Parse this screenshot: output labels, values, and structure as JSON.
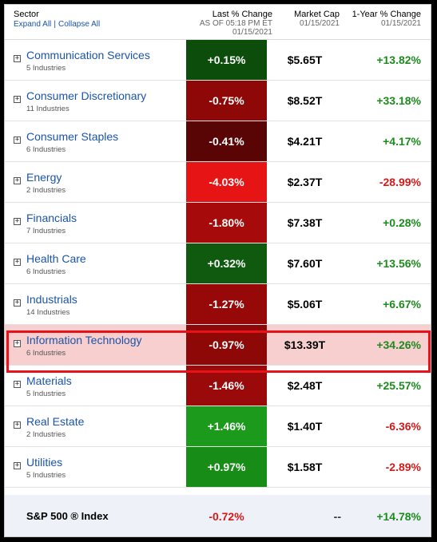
{
  "header": {
    "sector_label": "Sector",
    "expand_all": "Expand All",
    "separator": "|",
    "collapse_all": "Collapse All",
    "last_change_label": "Last % Change",
    "last_change_sub1": "AS OF 05:18 PM ET",
    "last_change_sub2": "01/15/2021",
    "market_cap_label": "Market Cap",
    "market_cap_sub": "01/15/2021",
    "one_year_label": "1-Year % Change",
    "one_year_sub": "01/15/2021"
  },
  "expander_glyph": "+",
  "sectors": [
    {
      "name": "Communication Services",
      "industries": "5 Industries",
      "last_change": "+0.15%",
      "heat_color": "#0c4d0c",
      "market_cap": "$5.65T",
      "one_year": "+13.82%",
      "one_year_sign": "pos"
    },
    {
      "name": "Consumer Discretionary",
      "industries": "11 Industries",
      "last_change": "-0.75%",
      "heat_color": "#8e0808",
      "market_cap": "$8.52T",
      "one_year": "+33.18%",
      "one_year_sign": "pos"
    },
    {
      "name": "Consumer Staples",
      "industries": "6 Industries",
      "last_change": "-0.41%",
      "heat_color": "#5a0505",
      "market_cap": "$4.21T",
      "one_year": "+4.17%",
      "one_year_sign": "pos"
    },
    {
      "name": "Energy",
      "industries": "2 Industries",
      "last_change": "-4.03%",
      "heat_color": "#e61414",
      "market_cap": "$2.37T",
      "one_year": "-28.99%",
      "one_year_sign": "neg"
    },
    {
      "name": "Financials",
      "industries": "7 Industries",
      "last_change": "-1.80%",
      "heat_color": "#a60a0a",
      "market_cap": "$7.38T",
      "one_year": "+0.28%",
      "one_year_sign": "pos"
    },
    {
      "name": "Health Care",
      "industries": "6 Industries",
      "last_change": "+0.32%",
      "heat_color": "#0f5a0f",
      "market_cap": "$7.60T",
      "one_year": "+13.56%",
      "one_year_sign": "pos"
    },
    {
      "name": "Industrials",
      "industries": "14 Industries",
      "last_change": "-1.27%",
      "heat_color": "#970909",
      "market_cap": "$5.06T",
      "one_year": "+6.67%",
      "one_year_sign": "pos"
    },
    {
      "name": "Information Technology",
      "industries": "6 Industries",
      "last_change": "-0.97%",
      "heat_color": "#8e0808",
      "market_cap": "$13.39T",
      "one_year": "+34.26%",
      "one_year_sign": "pos",
      "highlighted": true
    },
    {
      "name": "Materials",
      "industries": "5 Industries",
      "last_change": "-1.46%",
      "heat_color": "#9a0a0a",
      "market_cap": "$2.48T",
      "one_year": "+25.57%",
      "one_year_sign": "pos"
    },
    {
      "name": "Real Estate",
      "industries": "2 Industries",
      "last_change": "+1.46%",
      "heat_color": "#1c9a1c",
      "market_cap": "$1.40T",
      "one_year": "-6.36%",
      "one_year_sign": "neg"
    },
    {
      "name": "Utilities",
      "industries": "5 Industries",
      "last_change": "+0.97%",
      "heat_color": "#178c17",
      "market_cap": "$1.58T",
      "one_year": "-2.89%",
      "one_year_sign": "neg"
    }
  ],
  "footer": {
    "label": "S&P 500 ® Index",
    "last_change": "-0.72%",
    "market_cap": "--",
    "one_year": "+14.78%"
  },
  "colors": {
    "positive": "#1d8a1d",
    "negative": "#d11a1a",
    "link": "#1a54a8",
    "highlight_bg": "#f8cfcf",
    "highlight_border": "#e8121a"
  }
}
